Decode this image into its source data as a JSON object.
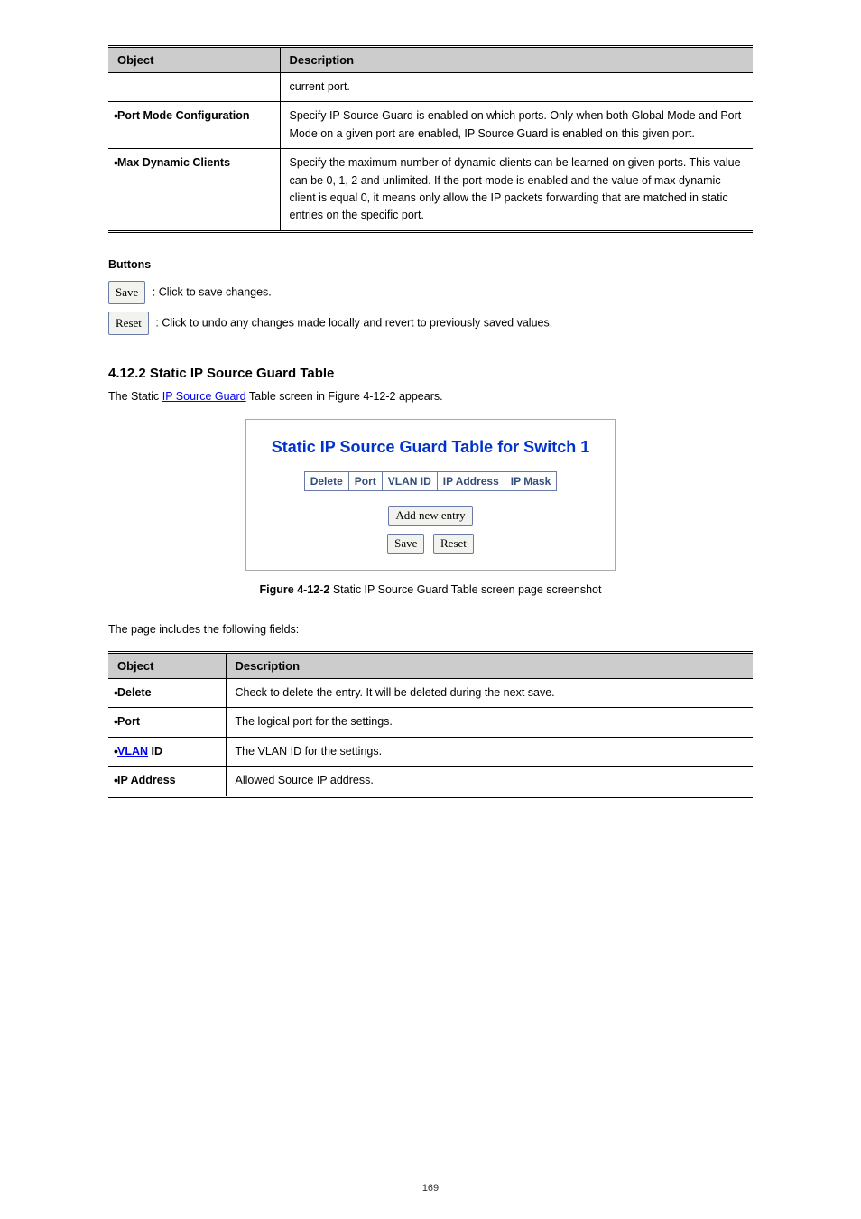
{
  "footer": "169",
  "table1": {
    "headers": [
      "Object",
      "Description"
    ],
    "rows": [
      {
        "obj": "",
        "obj_nobullet": true,
        "desc": "current port."
      },
      {
        "obj": "Port Mode Configuration",
        "desc": "Specify IP Source Guard is enabled on which ports. Only when both Global Mode and Port Mode on a given port are enabled, IP Source Guard is enabled on this given port."
      },
      {
        "obj": "Max Dynamic Clients",
        "desc": "Specify the maximum number of dynamic clients can be learned on given ports. This value can be 0, 1, 2 and unlimited. If the port mode is enabled and the value of max dynamic client is equal 0, it means only allow the IP packets forwarding that are matched in static entries on the specific port."
      }
    ]
  },
  "buttons": {
    "heading": "Buttons",
    "save_label": "Save",
    "save_desc": ": Click to save changes.",
    "reset_label": "Reset",
    "reset_desc": ": Click to undo any changes made locally and revert to previously saved values."
  },
  "section": {
    "heading": "4.12.2 Static IP Source Guard Table",
    "intro_before": "The Static ",
    "intro_link1": "IP Source Guard",
    "intro_mid": " Table screen in Figure 4-12-2 appears.",
    "shot": {
      "title": "Static IP Source Guard Table for Switch 1",
      "columns": [
        "Delete",
        "Port",
        "VLAN ID",
        "IP Address",
        "IP Mask"
      ],
      "btn_add": "Add new entry",
      "btn_save": "Save",
      "btn_reset": "Reset"
    },
    "figcap_label": "Figure 4-12-2",
    "figcap_rest": " Static IP Source Guard Table screen page screenshot",
    "para_after": "The page includes the following fields:"
  },
  "table2": {
    "headers": [
      "Object",
      "Description"
    ],
    "rows": [
      {
        "obj": "Delete",
        "desc": "Check to delete the entry. It will be deleted during the next save."
      },
      {
        "obj": "Port",
        "desc": "The logical port for the settings."
      },
      {
        "obj": "VLAN ID",
        "desc": "The VLAN ID for the settings."
      },
      {
        "obj": "IP Address",
        "desc": "Allowed Source IP address."
      }
    ]
  },
  "link_color": "#0000ee"
}
